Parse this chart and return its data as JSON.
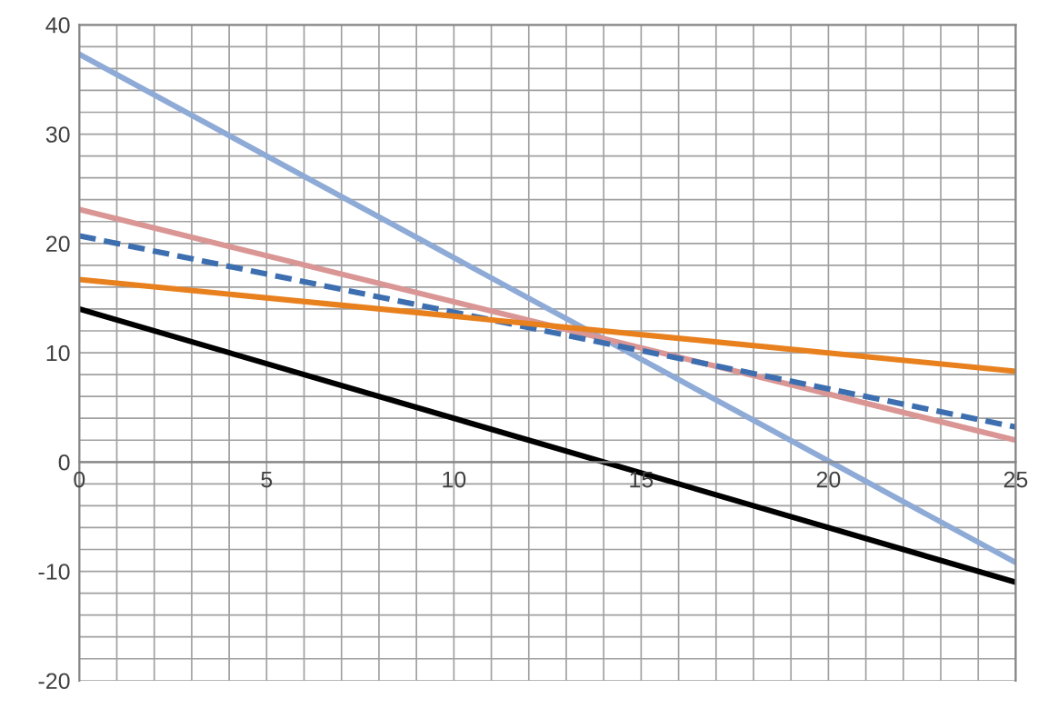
{
  "chart_data": {
    "type": "line",
    "x": [
      0,
      25
    ],
    "series": [
      {
        "color": "#8eaad6",
        "values": [
          37.3,
          -9.2
        ]
      },
      {
        "color": "#d99694",
        "values": [
          23.1,
          2.0
        ]
      },
      {
        "color": "#3d6fb0",
        "values": [
          20.7,
          3.2
        ],
        "line_style": "dashed"
      },
      {
        "color": "#e8801e",
        "values": [
          16.7,
          8.3
        ]
      },
      {
        "color": "#000000",
        "values": [
          14.0,
          -11.0
        ]
      }
    ],
    "xlim": [
      0,
      25
    ],
    "ylim": [
      -20,
      40
    ],
    "xticks": [
      0,
      {
        "value": 1,
        "label": null
      },
      {
        "value": 2,
        "label": null
      },
      {
        "value": 3,
        "label": null
      },
      {
        "value": 4,
        "label": null
      },
      5,
      {
        "value": 6,
        "label": null
      },
      {
        "value": 7,
        "label": null
      },
      {
        "value": 8,
        "label": null
      },
      {
        "value": 9,
        "label": null
      },
      10,
      {
        "value": 11,
        "label": null
      },
      {
        "value": 12,
        "label": null
      },
      {
        "value": 13,
        "label": null
      },
      {
        "value": 14,
        "label": null
      },
      15,
      {
        "value": 16,
        "label": null
      },
      {
        "value": 17,
        "label": null
      },
      {
        "value": 18,
        "label": null
      },
      {
        "value": 19,
        "label": null
      },
      20,
      {
        "value": 21,
        "label": null
      },
      {
        "value": 22,
        "label": null
      },
      {
        "value": 23,
        "label": null
      },
      {
        "value": 24,
        "label": null
      },
      25
    ],
    "yticks": [
      -20,
      {
        "value": -18,
        "label": null
      },
      {
        "value": -16,
        "label": null
      },
      {
        "value": -14,
        "label": null
      },
      {
        "value": -12,
        "label": null
      },
      -10,
      {
        "value": -8,
        "label": null
      },
      {
        "value": -6,
        "label": null
      },
      {
        "value": -4,
        "label": null
      },
      {
        "value": -2,
        "label": null
      },
      0,
      {
        "value": 2,
        "label": null
      },
      {
        "value": 4,
        "label": null
      },
      {
        "value": 6,
        "label": null
      },
      {
        "value": 8,
        "label": null
      },
      10,
      {
        "value": 12,
        "label": null
      },
      {
        "value": 14,
        "label": null
      },
      {
        "value": 16,
        "label": null
      },
      {
        "value": 18,
        "label": null
      },
      20,
      {
        "value": 22,
        "label": null
      },
      {
        "value": 24,
        "label": null
      },
      {
        "value": 26,
        "label": null
      },
      {
        "value": 28,
        "label": null
      },
      30,
      {
        "value": 32,
        "label": null
      },
      {
        "value": 34,
        "label": null
      },
      {
        "value": 36,
        "label": null
      },
      {
        "value": 38,
        "label": null
      },
      40
    ],
    "grid": true,
    "legend": false,
    "marker": "none",
    "line_style": "solid"
  }
}
